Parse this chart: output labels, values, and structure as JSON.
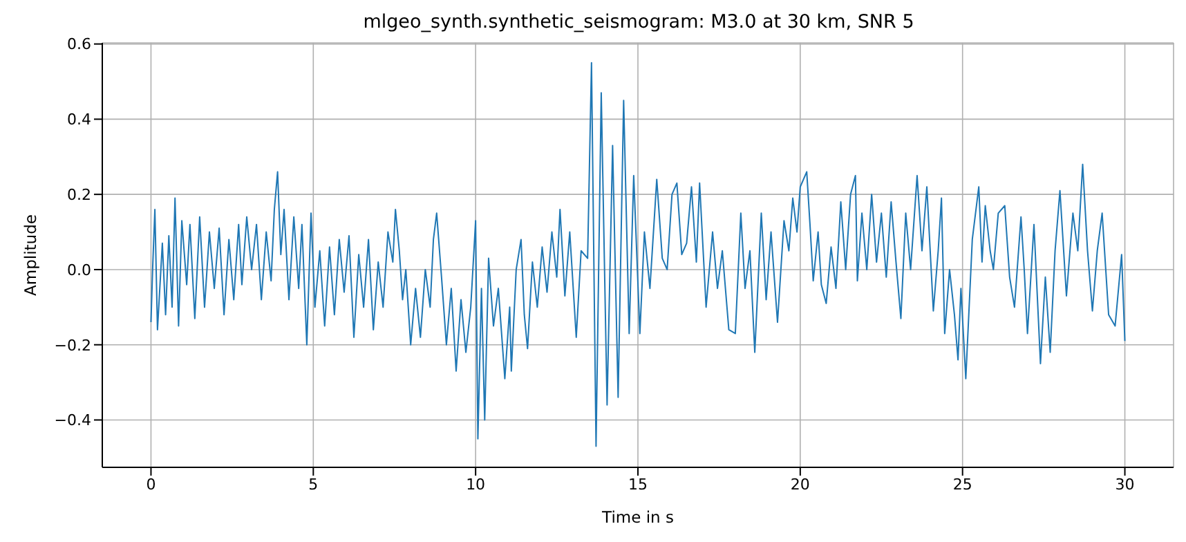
{
  "chart_data": {
    "type": "line",
    "title": "mlgeo_synth.synthetic_seismogram: M3.0 at 30 km, SNR 5",
    "xlabel": "Time in s",
    "ylabel": "Amplitude",
    "xlim": [
      -1.5,
      31.5
    ],
    "ylim": [
      -0.526,
      0.603
    ],
    "xticks": [
      0,
      5,
      10,
      15,
      20,
      25,
      30
    ],
    "yticks": [
      {
        "value": -0.4,
        "label": "−0.4"
      },
      {
        "value": -0.2,
        "label": "−0.2"
      },
      {
        "value": 0,
        "label": "0.0"
      },
      {
        "value": 0.2,
        "label": "0.2"
      },
      {
        "value": 0.4,
        "label": "0.4"
      },
      {
        "value": 0.6,
        "label": "0.6"
      }
    ],
    "grid": true,
    "line_style": "solid",
    "marker": "none",
    "series": [
      {
        "color": "#1f77b4",
        "x": [
          0,
          0.05,
          0.12,
          0.2,
          0.35,
          0.45,
          0.55,
          0.65,
          0.74,
          0.85,
          0.95,
          1.1,
          1.2,
          1.35,
          1.5,
          1.65,
          1.8,
          1.95,
          2.1,
          2.25,
          2.4,
          2.55,
          2.7,
          2.8,
          2.95,
          3.1,
          3.25,
          3.4,
          3.55,
          3.7,
          3.8,
          3.9,
          4.0,
          4.1,
          4.25,
          4.4,
          4.55,
          4.65,
          4.8,
          4.93,
          5.05,
          5.2,
          5.35,
          5.5,
          5.65,
          5.8,
          5.95,
          6.1,
          6.25,
          6.4,
          6.55,
          6.7,
          6.85,
          7.0,
          7.15,
          7.3,
          7.45,
          7.53,
          7.65,
          7.75,
          7.85,
          8.0,
          8.15,
          8.3,
          8.45,
          8.6,
          8.7,
          8.8,
          8.95,
          9.1,
          9.25,
          9.4,
          9.55,
          9.7,
          9.85,
          10.0,
          10.07,
          10.18,
          10.28,
          10.4,
          10.55,
          10.7,
          10.9,
          11.05,
          11.1,
          11.25,
          11.4,
          11.5,
          11.6,
          11.75,
          11.9,
          12.05,
          12.2,
          12.35,
          12.5,
          12.6,
          12.75,
          12.9,
          13.1,
          13.25,
          13.45,
          13.57,
          13.71,
          13.87,
          14.05,
          14.22,
          14.39,
          14.56,
          14.73,
          14.87,
          15.06,
          15.2,
          15.37,
          15.58,
          15.75,
          15.9,
          16.05,
          16.2,
          16.35,
          16.5,
          16.65,
          16.8,
          16.9,
          17.1,
          17.3,
          17.45,
          17.6,
          17.8,
          18.0,
          18.17,
          18.3,
          18.45,
          18.6,
          18.8,
          18.95,
          19.1,
          19.3,
          19.5,
          19.65,
          19.77,
          19.9,
          20.0,
          20.2,
          20.3,
          20.4,
          20.55,
          20.65,
          20.8,
          20.95,
          21.1,
          21.25,
          21.4,
          21.55,
          21.7,
          21.76,
          21.9,
          22.05,
          22.2,
          22.35,
          22.5,
          22.65,
          22.8,
          22.95,
          23.1,
          23.25,
          23.4,
          23.6,
          23.75,
          23.9,
          24.1,
          24.25,
          24.35,
          24.45,
          24.6,
          24.75,
          24.86,
          24.95,
          25.1,
          25.3,
          25.5,
          25.6,
          25.7,
          25.85,
          25.95,
          26.1,
          26.3,
          26.45,
          26.6,
          26.8,
          26.9,
          27.0,
          27.2,
          27.4,
          27.55,
          27.7,
          27.85,
          28.0,
          28.2,
          28.4,
          28.55,
          28.7,
          28.85,
          29.0,
          29.15,
          29.3,
          29.5,
          29.7,
          29.9,
          30.0
        ],
        "values": [
          -0.14,
          0.0,
          0.16,
          -0.16,
          0.07,
          -0.12,
          0.09,
          -0.1,
          0.19,
          -0.15,
          0.13,
          -0.04,
          0.12,
          -0.13,
          0.14,
          -0.1,
          0.1,
          -0.05,
          0.11,
          -0.12,
          0.08,
          -0.08,
          0.12,
          -0.04,
          0.14,
          0.0,
          0.12,
          -0.08,
          0.1,
          -0.03,
          0.16,
          0.26,
          0.04,
          0.16,
          -0.08,
          0.14,
          -0.05,
          0.12,
          -0.2,
          0.15,
          -0.1,
          0.05,
          -0.15,
          0.06,
          -0.12,
          0.08,
          -0.06,
          0.09,
          -0.18,
          0.04,
          -0.1,
          0.08,
          -0.16,
          0.02,
          -0.1,
          0.1,
          0.02,
          0.16,
          0.05,
          -0.08,
          0.0,
          -0.2,
          -0.05,
          -0.18,
          0.0,
          -0.1,
          0.08,
          0.15,
          -0.02,
          -0.2,
          -0.05,
          -0.27,
          -0.08,
          -0.22,
          -0.1,
          0.13,
          -0.45,
          -0.05,
          -0.4,
          0.03,
          -0.15,
          -0.05,
          -0.29,
          -0.1,
          -0.27,
          0.0,
          0.08,
          -0.12,
          -0.21,
          0.02,
          -0.1,
          0.06,
          -0.06,
          0.1,
          -0.02,
          0.16,
          -0.07,
          0.1,
          -0.18,
          0.05,
          0.03,
          0.55,
          -0.47,
          0.47,
          -0.36,
          0.33,
          -0.34,
          0.45,
          -0.17,
          0.25,
          -0.17,
          0.1,
          -0.05,
          0.24,
          0.03,
          0.0,
          0.2,
          0.23,
          0.04,
          0.07,
          0.22,
          0.02,
          0.23,
          -0.1,
          0.1,
          -0.05,
          0.05,
          -0.16,
          -0.17,
          0.15,
          -0.05,
          0.05,
          -0.22,
          0.15,
          -0.08,
          0.1,
          -0.14,
          0.13,
          0.05,
          0.19,
          0.1,
          0.22,
          0.26,
          0.12,
          -0.03,
          0.1,
          -0.04,
          -0.09,
          0.06,
          -0.05,
          0.18,
          0.0,
          0.2,
          0.25,
          -0.03,
          0.15,
          0.0,
          0.2,
          0.02,
          0.15,
          -0.02,
          0.18,
          0.02,
          -0.13,
          0.15,
          0.0,
          0.25,
          0.05,
          0.22,
          -0.11,
          0.05,
          0.19,
          -0.17,
          0.0,
          -0.12,
          -0.24,
          -0.05,
          -0.29,
          0.08,
          0.22,
          0.02,
          0.17,
          0.05,
          0.0,
          0.15,
          0.17,
          -0.02,
          -0.1,
          0.14,
          0.0,
          -0.17,
          0.12,
          -0.25,
          -0.02,
          -0.22,
          0.05,
          0.21,
          -0.07,
          0.15,
          0.05,
          0.28,
          0.05,
          -0.11,
          0.05,
          0.15,
          -0.12,
          -0.15,
          0.04,
          -0.19
        ]
      }
    ]
  }
}
